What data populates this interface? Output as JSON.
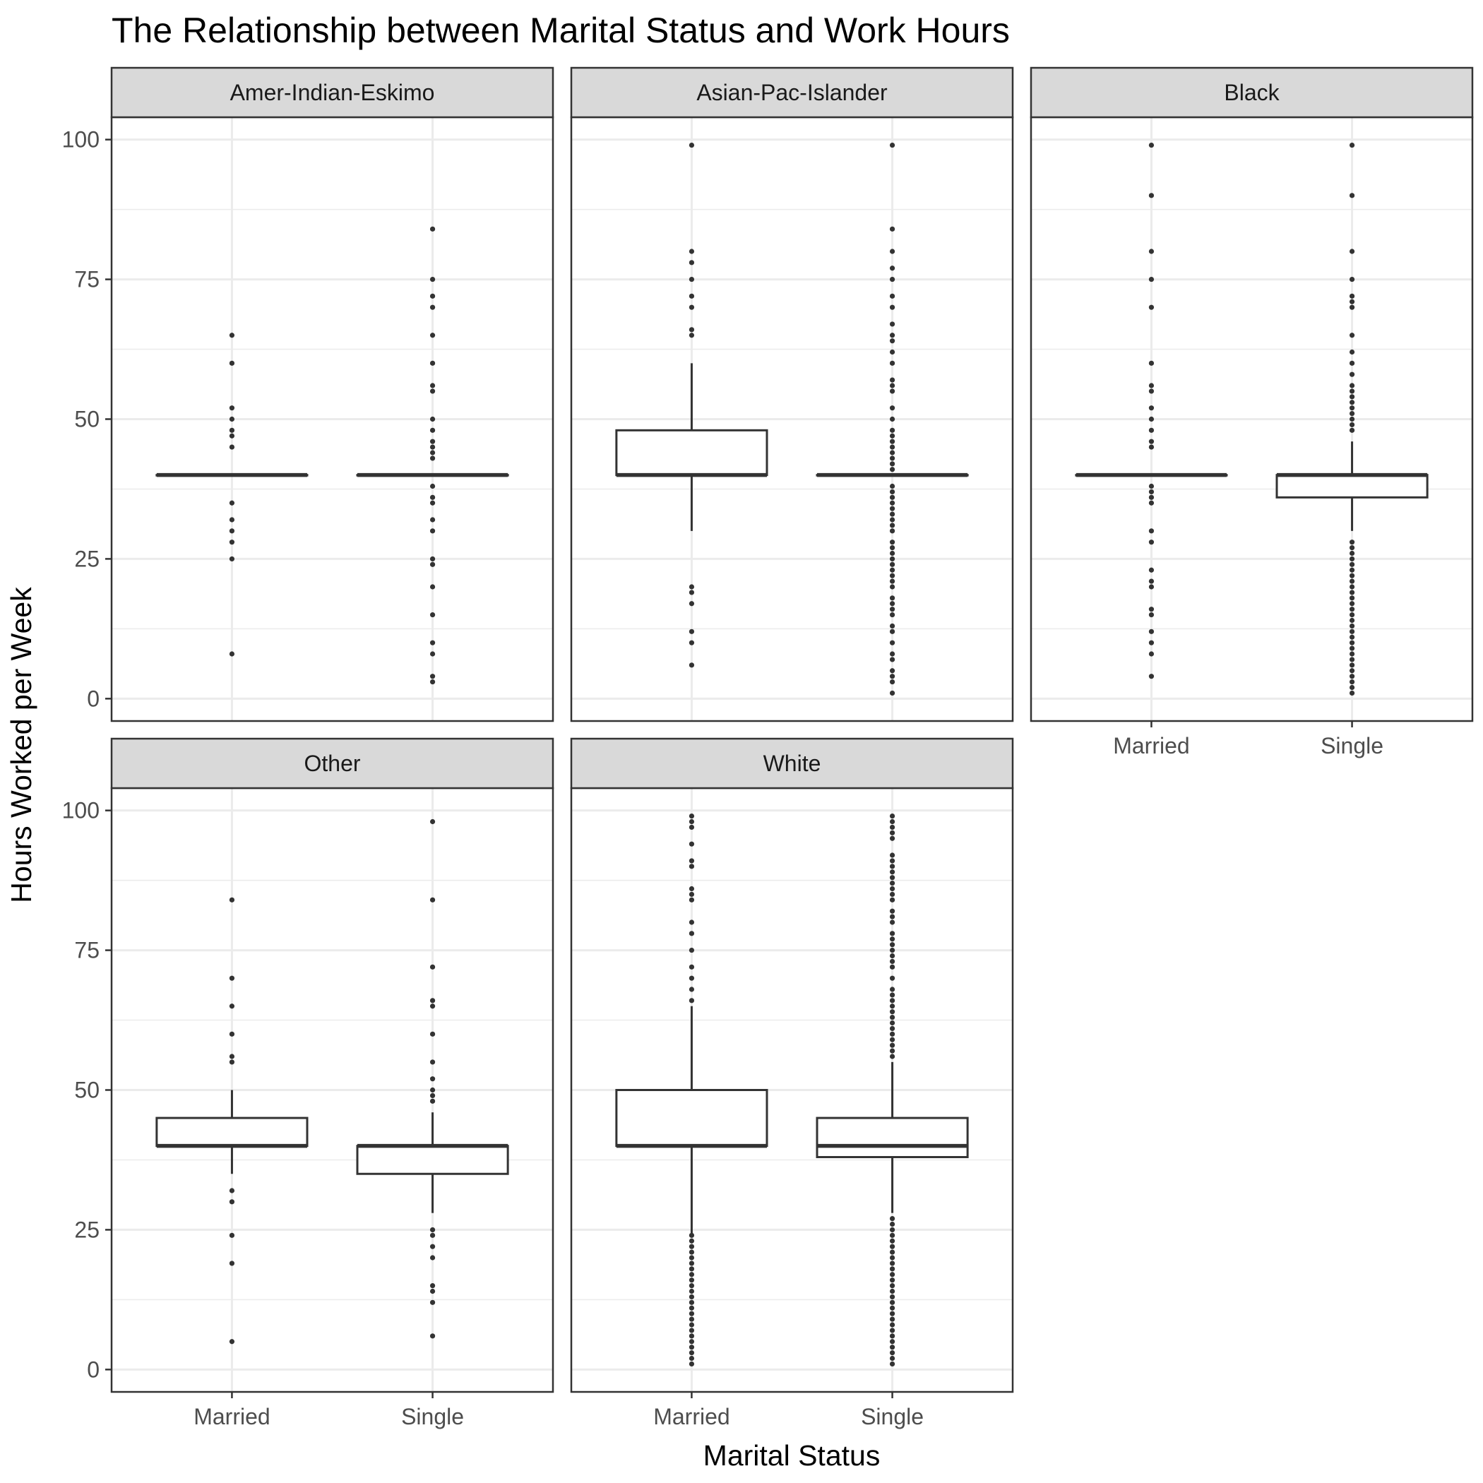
{
  "chart_data": {
    "type": "boxplot",
    "title": "The Relationship between Marital Status and Work Hours",
    "xlabel": "Marital Status",
    "ylabel": "Hours Worked per Week",
    "categories": [
      "Married",
      "Single"
    ],
    "ylim": [
      -4,
      104
    ],
    "yticks": [
      0,
      25,
      50,
      75,
      100
    ],
    "grid": true,
    "facets": [
      {
        "label": "Amer-Indian-Eskimo",
        "boxes": [
          {
            "category": "Married",
            "lower": 40,
            "q1": 40,
            "median": 40,
            "q3": 40,
            "upper": 40,
            "outliers": [
              65,
              60,
              52,
              50,
              48,
              47,
              45,
              35,
              32,
              30,
              28,
              25,
              8
            ]
          },
          {
            "category": "Single",
            "lower": 40,
            "q1": 40,
            "median": 40,
            "q3": 40,
            "upper": 40,
            "outliers": [
              84,
              75,
              72,
              70,
              65,
              60,
              56,
              55,
              50,
              48,
              46,
              45,
              44,
              43,
              38,
              36,
              35,
              32,
              30,
              25,
              24,
              20,
              15,
              10,
              8,
              4,
              3
            ]
          }
        ]
      },
      {
        "label": "Asian-Pac-Islander",
        "boxes": [
          {
            "category": "Married",
            "lower": 30,
            "q1": 40,
            "median": 40,
            "q3": 48,
            "upper": 60,
            "outliers": [
              99,
              80,
              78,
              75,
              72,
              70,
              66,
              65,
              20,
              19,
              17,
              12,
              10,
              6
            ]
          },
          {
            "category": "Single",
            "lower": 40,
            "q1": 40,
            "median": 40,
            "q3": 40,
            "upper": 40,
            "outliers": [
              99,
              84,
              80,
              77,
              75,
              72,
              70,
              67,
              65,
              64,
              62,
              60,
              57,
              56,
              55,
              52,
              50,
              48,
              47,
              46,
              45,
              44,
              43,
              42,
              41,
              38,
              37,
              36,
              35,
              34,
              33,
              32,
              31,
              30,
              28,
              27,
              26,
              25,
              24,
              23,
              22,
              21,
              20,
              18,
              17,
              16,
              15,
              13,
              12,
              10,
              8,
              7,
              5,
              4,
              3,
              1
            ]
          }
        ]
      },
      {
        "label": "Black",
        "boxes": [
          {
            "category": "Married",
            "lower": 40,
            "q1": 40,
            "median": 40,
            "q3": 40,
            "upper": 40,
            "outliers": [
              99,
              90,
              80,
              75,
              70,
              60,
              56,
              55,
              52,
              50,
              48,
              46,
              45,
              38,
              37,
              36,
              35,
              30,
              28,
              23,
              21,
              20,
              16,
              15,
              12,
              10,
              8,
              4
            ]
          },
          {
            "category": "Single",
            "lower": 30,
            "q1": 36,
            "median": 40,
            "q3": 40,
            "upper": 46,
            "outliers": [
              99,
              90,
              80,
              75,
              72,
              71,
              70,
              65,
              62,
              60,
              58,
              56,
              55,
              54,
              53,
              52,
              51,
              50,
              49,
              48,
              28,
              27,
              26,
              25,
              24,
              23,
              22,
              21,
              20,
              19,
              18,
              17,
              16,
              15,
              14,
              13,
              12,
              11,
              10,
              9,
              8,
              7,
              6,
              5,
              4,
              3,
              2,
              1
            ]
          }
        ]
      },
      {
        "label": "Other",
        "boxes": [
          {
            "category": "Married",
            "lower": 35,
            "q1": 40,
            "median": 40,
            "q3": 45,
            "upper": 50,
            "outliers": [
              84,
              70,
              65,
              60,
              56,
              55,
              32,
              30,
              24,
              19,
              5
            ]
          },
          {
            "category": "Single",
            "lower": 28,
            "q1": 35,
            "median": 40,
            "q3": 40,
            "upper": 46,
            "outliers": [
              98,
              84,
              72,
              66,
              65,
              60,
              55,
              52,
              50,
              49,
              48,
              25,
              24,
              22,
              20,
              15,
              14,
              12,
              6
            ]
          }
        ]
      },
      {
        "label": "White",
        "boxes": [
          {
            "category": "Married",
            "lower": 24,
            "q1": 40,
            "median": 40,
            "q3": 50,
            "upper": 65,
            "outliers": [
              99,
              98,
              97,
              94,
              91,
              90,
              86,
              85,
              84,
              80,
              78,
              75,
              72,
              70,
              68,
              66,
              24,
              23,
              22,
              21,
              20,
              19,
              18,
              17,
              16,
              15,
              14,
              13,
              12,
              11,
              10,
              9,
              8,
              7,
              6,
              5,
              4,
              3,
              2,
              1
            ]
          },
          {
            "category": "Single",
            "lower": 28,
            "q1": 38,
            "median": 40,
            "q3": 45,
            "upper": 55,
            "outliers": [
              99,
              98,
              97,
              96,
              95,
              92,
              91,
              90,
              89,
              88,
              87,
              86,
              85,
              84,
              82,
              81,
              80,
              78,
              77,
              76,
              75,
              74,
              73,
              72,
              70,
              68,
              67,
              66,
              65,
              64,
              63,
              62,
              61,
              60,
              59,
              58,
              57,
              56,
              27,
              26,
              25,
              24,
              23,
              22,
              21,
              20,
              19,
              18,
              17,
              16,
              15,
              14,
              13,
              12,
              11,
              10,
              9,
              8,
              7,
              6,
              5,
              4,
              3,
              2,
              1
            ]
          }
        ]
      }
    ]
  }
}
